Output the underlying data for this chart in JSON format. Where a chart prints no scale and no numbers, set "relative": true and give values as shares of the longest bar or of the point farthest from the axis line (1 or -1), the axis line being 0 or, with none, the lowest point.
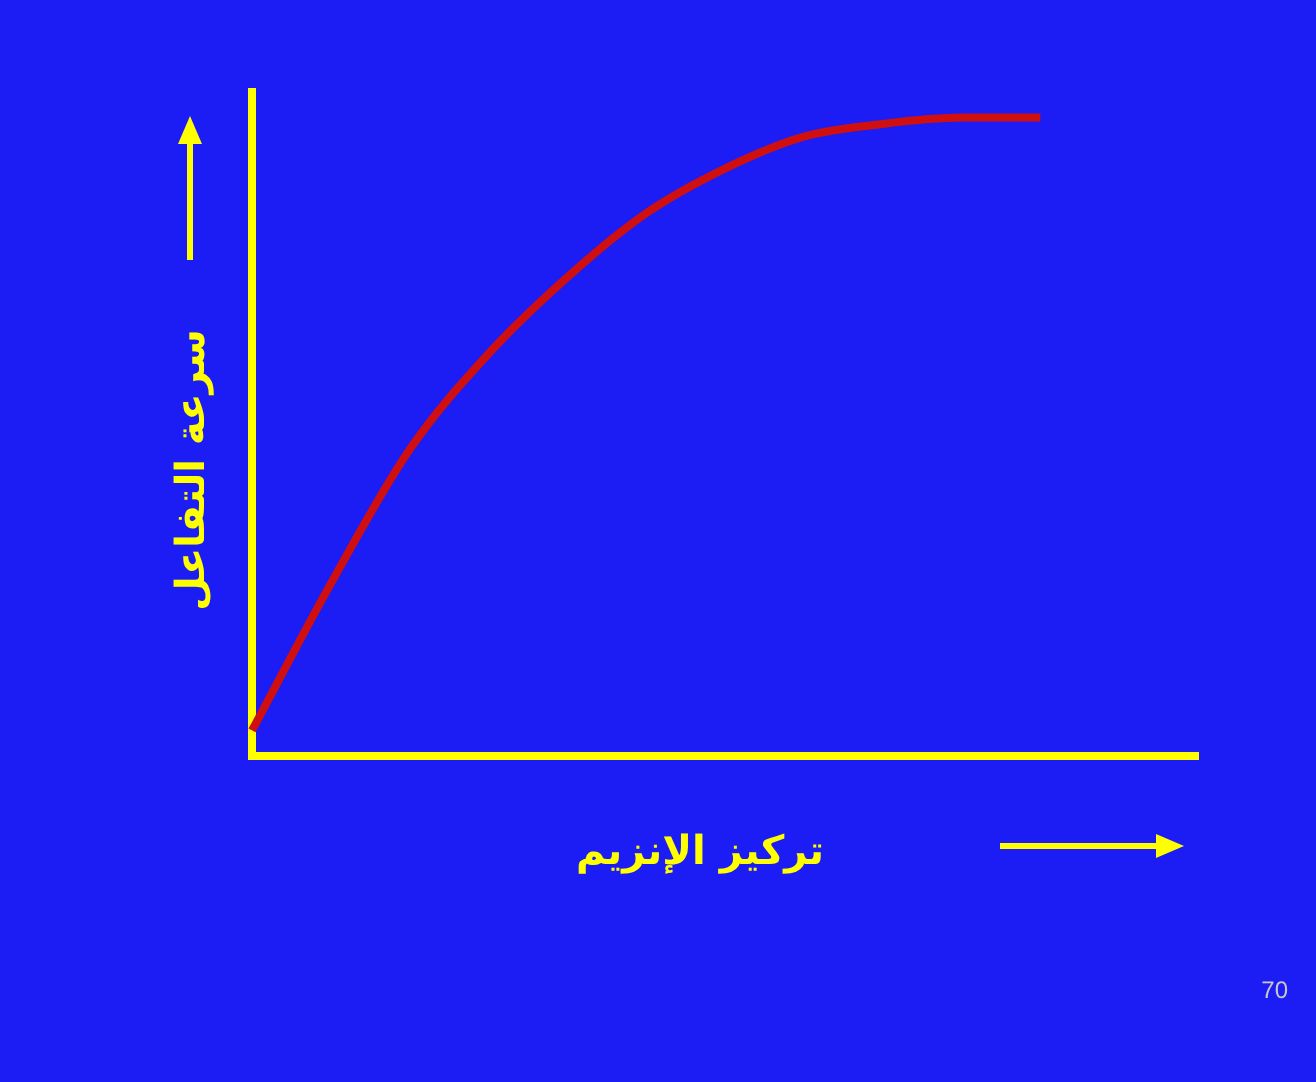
{
  "chart_data": {
    "type": "line",
    "relative": true,
    "xlabel": "تركيز الإنزيم",
    "ylabel": "سرعة التفاعل",
    "categories": [
      null,
      null,
      null,
      null,
      null,
      null,
      null,
      null,
      null,
      null,
      null,
      null,
      null
    ],
    "series": [
      {
        "color": "#d01010",
        "values": [
          0.04,
          0.27,
          0.48,
          0.63,
          0.75,
          0.85,
          0.92,
          0.97,
          0.99,
          1,
          1,
          null,
          null
        ]
      }
    ],
    "annotations": [
      "70"
    ],
    "grid": false,
    "legend": false,
    "marker": "none",
    "line_style": "solid"
  }
}
